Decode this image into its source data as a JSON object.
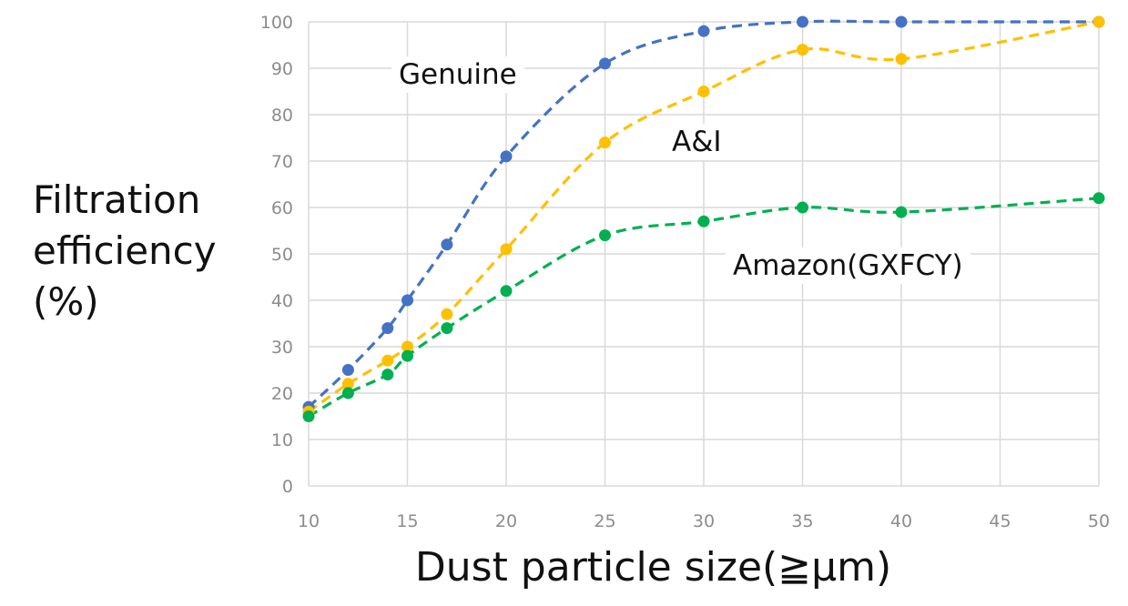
{
  "chart_data": {
    "type": "line",
    "xlabel": "Dust particle size(≧μm)",
    "ylabel_lines": [
      "Filtration",
      "efficiency",
      "(%)"
    ],
    "x_ticks": [
      10,
      15,
      20,
      25,
      30,
      35,
      40,
      45,
      50
    ],
    "y_ticks": [
      0,
      10,
      20,
      30,
      40,
      50,
      60,
      70,
      80,
      90,
      100
    ],
    "xlim": [
      10,
      50
    ],
    "ylim": [
      0,
      100
    ],
    "grid": true,
    "x": [
      10,
      12,
      14,
      15,
      17,
      20,
      25,
      30,
      35,
      40,
      50
    ],
    "series": [
      {
        "name": "Genuine",
        "color": "#4472c4",
        "values": [
          17,
          25,
          34,
          40,
          52,
          71,
          91,
          98,
          100,
          100,
          100
        ]
      },
      {
        "name": "A&I",
        "color": "#ffc000",
        "values": [
          16,
          22,
          27,
          30,
          37,
          51,
          74,
          85,
          94,
          92,
          100
        ]
      },
      {
        "name": "Amazon(GXFCY)",
        "color": "#00b050",
        "values": [
          15,
          20,
          24,
          28,
          34,
          42,
          54,
          57,
          60,
          59,
          62
        ]
      }
    ]
  }
}
